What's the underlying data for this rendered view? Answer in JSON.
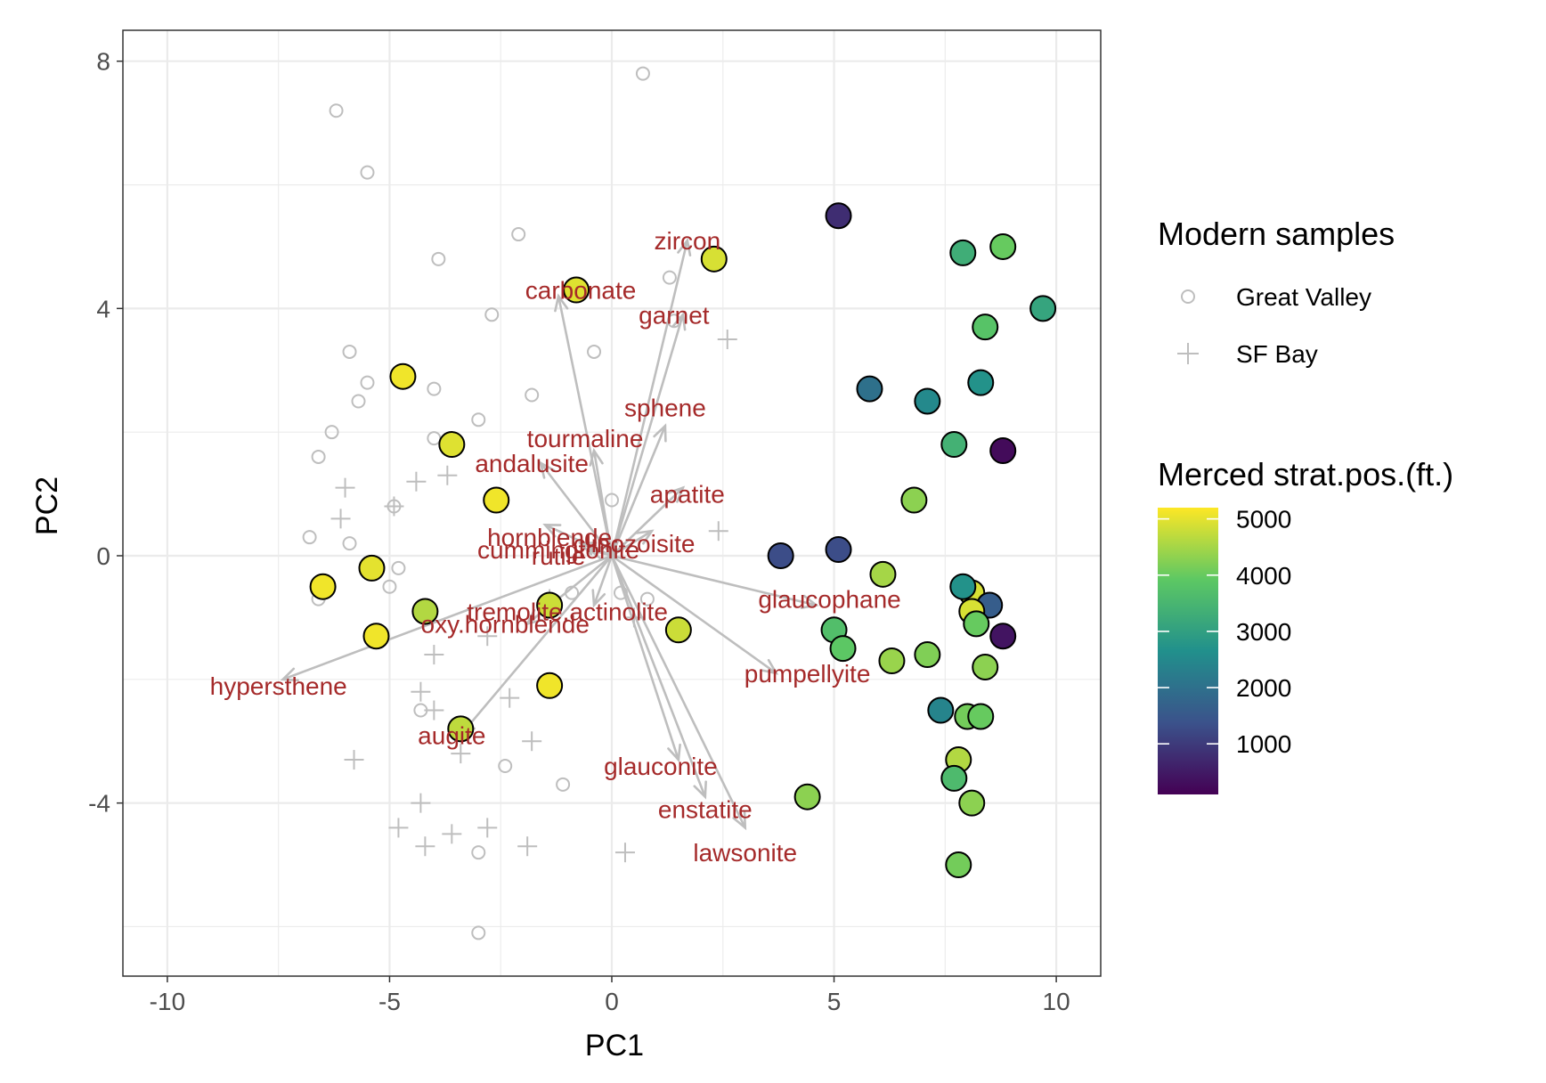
{
  "colors": {
    "grid": "#ebebeb",
    "panel_border": "#333333",
    "reference": "#bebebe",
    "arrow": "#bebebe",
    "arrow_label": "#a52a2a",
    "point_outline": "#000000",
    "viridis": [
      "#440154",
      "#3b528b",
      "#21908c",
      "#5dc863",
      "#fde725"
    ]
  },
  "chart_data": {
    "type": "scatter",
    "xlabel": "PC1",
    "ylabel": "PC2",
    "xlim": [
      -11,
      11
    ],
    "ylim": [
      -6.8,
      8.5
    ],
    "x_ticks": [
      -10,
      -5,
      0,
      5,
      10
    ],
    "x_tick_labels": [
      "-10",
      "-5",
      "0",
      "5",
      "10"
    ],
    "y_ticks": [
      -4,
      0,
      4,
      8
    ],
    "y_tick_labels": [
      "-4",
      "0",
      "4",
      "8"
    ],
    "grid": true,
    "legend_position": "right",
    "modern_legend": {
      "title": "Modern samples",
      "entries": [
        {
          "label": "Great Valley",
          "shape": "circle-open"
        },
        {
          "label": "SF Bay",
          "shape": "plus"
        }
      ]
    },
    "color_legend": {
      "title": "Merced strat.pos.(ft.)",
      "range": [
        100,
        5200
      ],
      "breaks": [
        5000,
        4000,
        3000,
        2000,
        1000
      ],
      "break_labels": [
        "5000",
        "4000",
        "3000",
        "2000",
        "1000"
      ]
    },
    "great_valley": [
      [
        0.7,
        7.8
      ],
      [
        -6.2,
        7.2
      ],
      [
        -5.5,
        6.2
      ],
      [
        -2.1,
        5.2
      ],
      [
        -3.9,
        4.8
      ],
      [
        1.3,
        4.5
      ],
      [
        -0.8,
        4.3
      ],
      [
        -2.7,
        3.9
      ],
      [
        1.4,
        3.8
      ],
      [
        -0.4,
        3.3
      ],
      [
        -5.9,
        3.3
      ],
      [
        -5.5,
        2.8
      ],
      [
        -4.0,
        2.7
      ],
      [
        -1.8,
        2.6
      ],
      [
        -5.7,
        2.5
      ],
      [
        -3.0,
        2.2
      ],
      [
        -6.3,
        2.0
      ],
      [
        -4.0,
        1.9
      ],
      [
        -3.5,
        1.8
      ],
      [
        -6.6,
        1.6
      ],
      [
        -4.9,
        0.8
      ],
      [
        0.0,
        0.9
      ],
      [
        -6.8,
        0.3
      ],
      [
        -5.9,
        0.2
      ],
      [
        -4.8,
        -0.2
      ],
      [
        -5.0,
        -0.5
      ],
      [
        -6.6,
        -0.7
      ],
      [
        -4.2,
        -0.8
      ],
      [
        -4.3,
        -2.5
      ],
      [
        -2.4,
        -3.4
      ],
      [
        -1.1,
        -3.7
      ],
      [
        -3.0,
        -4.8
      ],
      [
        -3.0,
        -6.1
      ],
      [
        0.2,
        -0.6
      ],
      [
        0.8,
        -0.7
      ],
      [
        -0.9,
        -0.6
      ]
    ],
    "sf_bay": [
      [
        2.6,
        3.5
      ],
      [
        -6.0,
        1.1
      ],
      [
        -4.4,
        1.2
      ],
      [
        -3.7,
        1.3
      ],
      [
        -4.9,
        0.8
      ],
      [
        -6.1,
        0.6
      ],
      [
        2.4,
        0.4
      ],
      [
        -4.0,
        -1.6
      ],
      [
        -2.8,
        -1.3
      ],
      [
        -4.3,
        -2.2
      ],
      [
        -4.0,
        -2.5
      ],
      [
        -2.3,
        -2.3
      ],
      [
        -1.8,
        -3.0
      ],
      [
        -3.4,
        -3.2
      ],
      [
        -5.8,
        -3.3
      ],
      [
        -4.3,
        -4.0
      ],
      [
        -4.8,
        -4.4
      ],
      [
        -3.6,
        -4.5
      ],
      [
        -2.8,
        -4.4
      ],
      [
        -4.2,
        -4.7
      ],
      [
        -1.9,
        -4.7
      ],
      [
        0.3,
        -4.8
      ],
      [
        -1.4,
        -0.7
      ],
      [
        0.5,
        -1.0
      ]
    ],
    "loadings": [
      {
        "label": "zircon",
        "x": 1.7,
        "y": 5.1,
        "label_x": 1.7,
        "label_y": 5.1
      },
      {
        "label": "carbonate",
        "x": -1.2,
        "y": 4.2,
        "label_x": -0.7,
        "label_y": 4.3
      },
      {
        "label": "garnet",
        "x": 1.6,
        "y": 3.9,
        "label_x": 1.4,
        "label_y": 3.9
      },
      {
        "label": "sphene",
        "x": 1.2,
        "y": 2.1,
        "label_x": 1.2,
        "label_y": 2.4
      },
      {
        "label": "tourmaline",
        "x": -0.4,
        "y": 1.7,
        "label_x": -0.6,
        "label_y": 1.9
      },
      {
        "label": "andalusite",
        "x": -1.6,
        "y": 1.5,
        "label_x": -1.8,
        "label_y": 1.5
      },
      {
        "label": "apatite",
        "x": 1.6,
        "y": 1.1,
        "label_x": 1.7,
        "label_y": 1.0
      },
      {
        "label": "hornblende",
        "x": -1.5,
        "y": 0.5,
        "label_x": -1.4,
        "label_y": 0.3
      },
      {
        "label": "clinozoisite",
        "x": 0.9,
        "y": 0.4,
        "label_x": 0.5,
        "label_y": 0.2
      },
      {
        "label": "cummingtonite",
        "x": -0.7,
        "y": 0.2,
        "label_x": -1.2,
        "label_y": 0.1
      },
      {
        "label": "rutile",
        "x": -0.5,
        "y": 0.1,
        "label_x": -1.2,
        "label_y": 0.0
      },
      {
        "label": "glaucophane",
        "x": 4.6,
        "y": -0.8,
        "label_x": 4.9,
        "label_y": -0.7
      },
      {
        "label": "tremolite.actinolite",
        "x": -0.4,
        "y": -0.8,
        "label_x": -1.0,
        "label_y": -0.9
      },
      {
        "label": "oxy.hornblende",
        "x": -1.9,
        "y": -1.1,
        "label_x": -2.4,
        "label_y": -1.1
      },
      {
        "label": "pumpellyite",
        "x": 3.7,
        "y": -1.9,
        "label_x": 4.4,
        "label_y": -1.9
      },
      {
        "label": "hypersthene",
        "x": -7.4,
        "y": -2.0,
        "label_x": -7.5,
        "label_y": -2.1
      },
      {
        "label": "augite",
        "x": -3.4,
        "y": -2.9,
        "label_x": -3.6,
        "label_y": -2.9
      },
      {
        "label": "glauconite",
        "x": 1.5,
        "y": -3.3,
        "label_x": 1.1,
        "label_y": -3.4
      },
      {
        "label": "enstatite",
        "x": 2.1,
        "y": -3.9,
        "label_x": 2.1,
        "label_y": -4.1
      },
      {
        "label": "lawsonite",
        "x": 3.0,
        "y": -4.4,
        "label_x": 3.0,
        "label_y": -4.8
      }
    ],
    "merced": [
      {
        "x": 5.1,
        "y": 5.5,
        "pos": 800
      },
      {
        "x": 7.9,
        "y": 4.9,
        "pos": 3300
      },
      {
        "x": 8.8,
        "y": 5.0,
        "pos": 4000
      },
      {
        "x": 9.7,
        "y": 4.0,
        "pos": 3100
      },
      {
        "x": 2.3,
        "y": 4.8,
        "pos": 4900
      },
      {
        "x": -0.8,
        "y": 4.3,
        "pos": 4950
      },
      {
        "x": 8.4,
        "y": 3.7,
        "pos": 3800
      },
      {
        "x": 5.8,
        "y": 2.7,
        "pos": 2000
      },
      {
        "x": 8.3,
        "y": 2.8,
        "pos": 2700
      },
      {
        "x": 7.1,
        "y": 2.5,
        "pos": 2500
      },
      {
        "x": -4.7,
        "y": 2.9,
        "pos": 5100
      },
      {
        "x": -3.6,
        "y": 1.8,
        "pos": 4950
      },
      {
        "x": 7.7,
        "y": 1.8,
        "pos": 3400
      },
      {
        "x": 8.8,
        "y": 1.7,
        "pos": 250
      },
      {
        "x": 6.8,
        "y": 0.9,
        "pos": 4300
      },
      {
        "x": -2.6,
        "y": 0.9,
        "pos": 5100
      },
      {
        "x": 3.8,
        "y": 0.0,
        "pos": 1300
      },
      {
        "x": 5.1,
        "y": 0.1,
        "pos": 1300
      },
      {
        "x": 6.1,
        "y": -0.3,
        "pos": 4500
      },
      {
        "x": -5.4,
        "y": -0.2,
        "pos": 5000
      },
      {
        "x": -6.5,
        "y": -0.5,
        "pos": 5100
      },
      {
        "x": 8.1,
        "y": -0.6,
        "pos": 4900
      },
      {
        "x": 7.9,
        "y": -0.5,
        "pos": 2700
      },
      {
        "x": 8.5,
        "y": -0.8,
        "pos": 1600
      },
      {
        "x": 8.1,
        "y": -0.9,
        "pos": 4900
      },
      {
        "x": -4.2,
        "y": -0.9,
        "pos": 4600
      },
      {
        "x": -1.4,
        "y": -0.8,
        "pos": 4800
      },
      {
        "x": 8.2,
        "y": -1.1,
        "pos": 4000
      },
      {
        "x": 5.0,
        "y": -1.2,
        "pos": 3700
      },
      {
        "x": -5.3,
        "y": -1.3,
        "pos": 5100
      },
      {
        "x": 1.5,
        "y": -1.2,
        "pos": 4800
      },
      {
        "x": 8.8,
        "y": -1.3,
        "pos": 400
      },
      {
        "x": 5.2,
        "y": -1.5,
        "pos": 3900
      },
      {
        "x": 6.3,
        "y": -1.7,
        "pos": 4400
      },
      {
        "x": 7.1,
        "y": -1.6,
        "pos": 4200
      },
      {
        "x": 8.4,
        "y": -1.8,
        "pos": 4300
      },
      {
        "x": -1.4,
        "y": -2.1,
        "pos": 5100
      },
      {
        "x": -3.4,
        "y": -2.8,
        "pos": 4700
      },
      {
        "x": 7.4,
        "y": -2.5,
        "pos": 2400
      },
      {
        "x": 8.0,
        "y": -2.6,
        "pos": 4100
      },
      {
        "x": 8.3,
        "y": -2.6,
        "pos": 4000
      },
      {
        "x": 7.8,
        "y": -3.3,
        "pos": 4600
      },
      {
        "x": 7.7,
        "y": -3.6,
        "pos": 3600
      },
      {
        "x": 4.4,
        "y": -3.9,
        "pos": 4300
      },
      {
        "x": 8.1,
        "y": -4.0,
        "pos": 4300
      },
      {
        "x": 7.8,
        "y": -5.0,
        "pos": 4100
      }
    ]
  }
}
